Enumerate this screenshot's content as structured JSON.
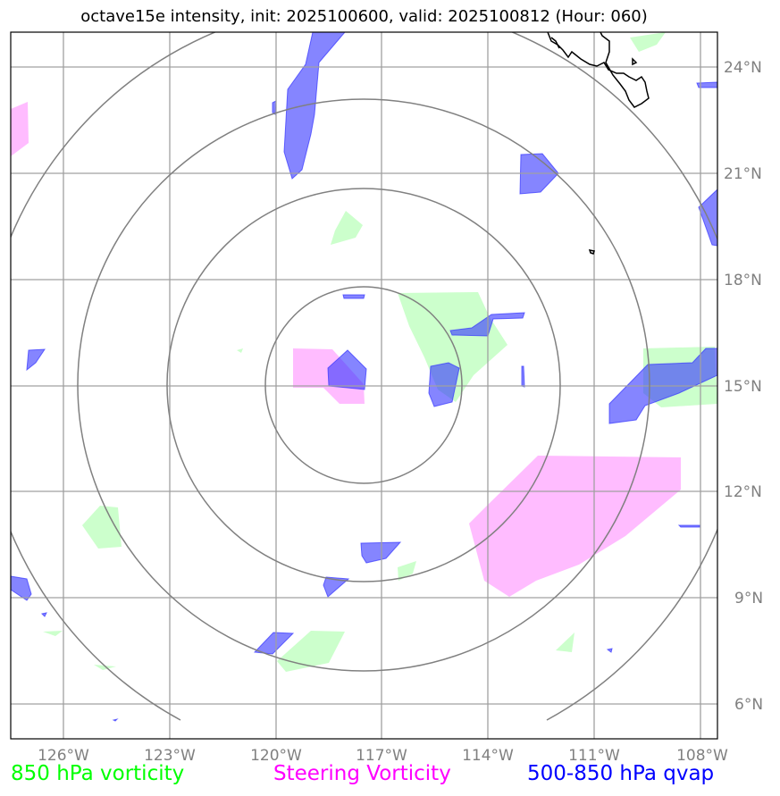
{
  "title": "octave15e intensity, init: 2025100600, valid: 2025100812 (Hour: 060)",
  "model": "octave15e",
  "init": "2025100600",
  "valid": "2025100812",
  "forecast_hour": "060",
  "lon_ticks": [
    "126°W",
    "123°W",
    "120°W",
    "117°W",
    "114°W",
    "111°W",
    "108°W"
  ],
  "lat_ticks": [
    "24°N",
    "21°N",
    "18°N",
    "15°N",
    "12°N",
    "9°N",
    "6°N"
  ],
  "storm_center": {
    "lon": -117.0,
    "lat": 15.0
  },
  "range_rings": [
    "ring-1",
    "ring-2",
    "ring-3",
    "ring-4"
  ],
  "legend": [
    {
      "label": "850 hPa vorticity",
      "color": "#00ff00"
    },
    {
      "label": "Steering Vorticity",
      "color": "#ff00ff"
    },
    {
      "label": "500-850 hPa qvap",
      "color": "#0000ff"
    }
  ],
  "layers": {
    "vorticity_850": {
      "fill": "#ccffcc"
    },
    "steering_vorticity": {
      "fill": "#ffb3ff"
    },
    "qvap": {
      "fill": "#3333ff"
    }
  },
  "colors": {
    "grid": "#a0a0a0",
    "rings": "#808080",
    "coast": "#000000"
  }
}
